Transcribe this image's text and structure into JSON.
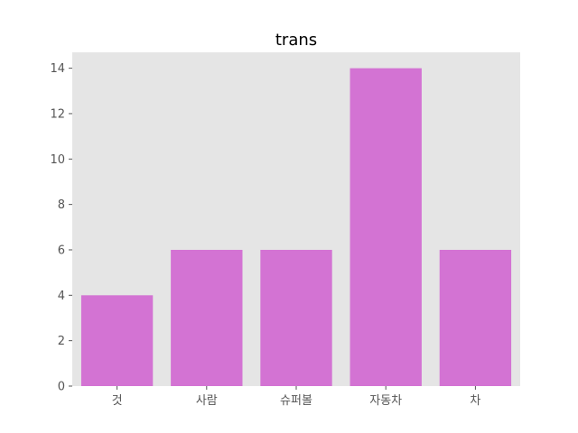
{
  "chart_data": {
    "type": "bar",
    "title": "trans",
    "categories": [
      "것",
      "사람",
      "슈퍼볼",
      "자동차",
      "차"
    ],
    "values": [
      4,
      6,
      6,
      14,
      6
    ],
    "xlabel": "",
    "ylabel": "",
    "ylim": [
      0,
      14.7
    ],
    "yticks": [
      0,
      2,
      4,
      6,
      8,
      10,
      12,
      14
    ],
    "grid": false,
    "colors": {
      "bar": "#d373d3",
      "plot_background": "#e5e5e5",
      "tick_text": "#555555",
      "tick_mark": "#555555"
    }
  }
}
